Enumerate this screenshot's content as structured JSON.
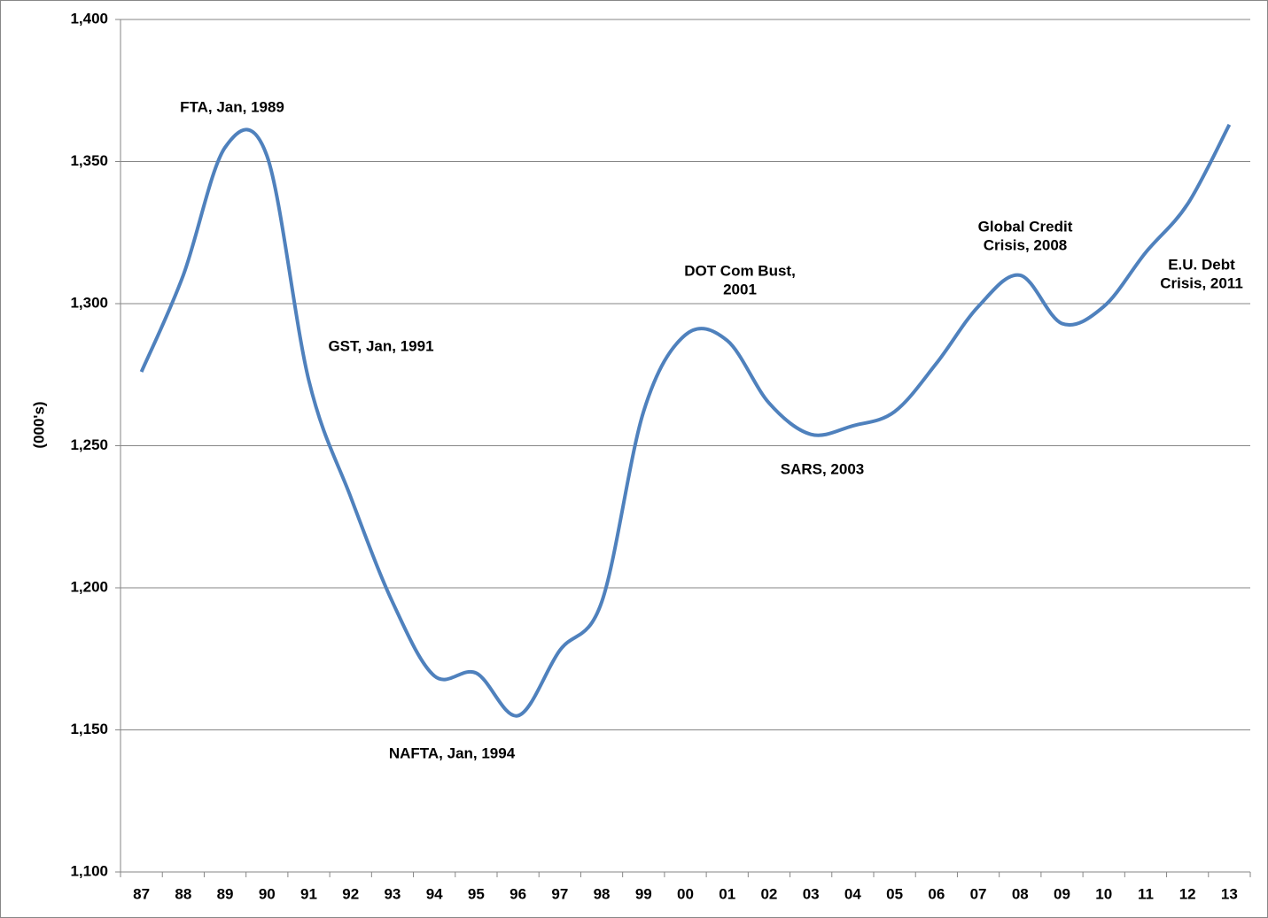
{
  "chart_data": {
    "type": "line",
    "y_label": "(000's)",
    "categories": [
      "87",
      "88",
      "89",
      "90",
      "91",
      "92",
      "93",
      "94",
      "95",
      "96",
      "97",
      "98",
      "99",
      "00",
      "01",
      "02",
      "03",
      "04",
      "05",
      "06",
      "07",
      "08",
      "09",
      "10",
      "11",
      "12",
      "13"
    ],
    "series": [
      {
        "color": "#4f81bd",
        "values": [
          1276,
          1310,
          1355,
          1352,
          1273,
          1232,
          1195,
          1169,
          1170,
          1155,
          1178,
          1195,
          1262,
          1289,
          1287,
          1265,
          1254,
          1257,
          1262,
          1279,
          1299,
          1310,
          1293,
          1299,
          1318,
          1335,
          1363
        ]
      }
    ],
    "ylim": [
      1100,
      1400
    ],
    "yticks": [
      {
        "value": 1100,
        "label": "1,100"
      },
      {
        "value": 1150,
        "label": "1,150"
      },
      {
        "value": 1200,
        "label": "1,200"
      },
      {
        "value": 1250,
        "label": "1,250"
      },
      {
        "value": 1300,
        "label": "1,300"
      },
      {
        "value": 1350,
        "label": "1,350"
      },
      {
        "value": 1400,
        "label": "1,400"
      }
    ],
    "grid": true,
    "annotations": [
      {
        "lines": [
          "FTA, Jan, 1989"
        ]
      },
      {
        "lines": [
          "GST, Jan, 1991"
        ]
      },
      {
        "lines": [
          "NAFTA, Jan, 1994"
        ]
      },
      {
        "lines": [
          "DOT Com Bust,",
          "2001"
        ]
      },
      {
        "lines": [
          "SARS, 2003"
        ]
      },
      {
        "lines": [
          "Global Credit",
          "Crisis, 2008"
        ]
      },
      {
        "lines": [
          "E.U. Debt",
          "Crisis, 2011"
        ]
      }
    ]
  }
}
